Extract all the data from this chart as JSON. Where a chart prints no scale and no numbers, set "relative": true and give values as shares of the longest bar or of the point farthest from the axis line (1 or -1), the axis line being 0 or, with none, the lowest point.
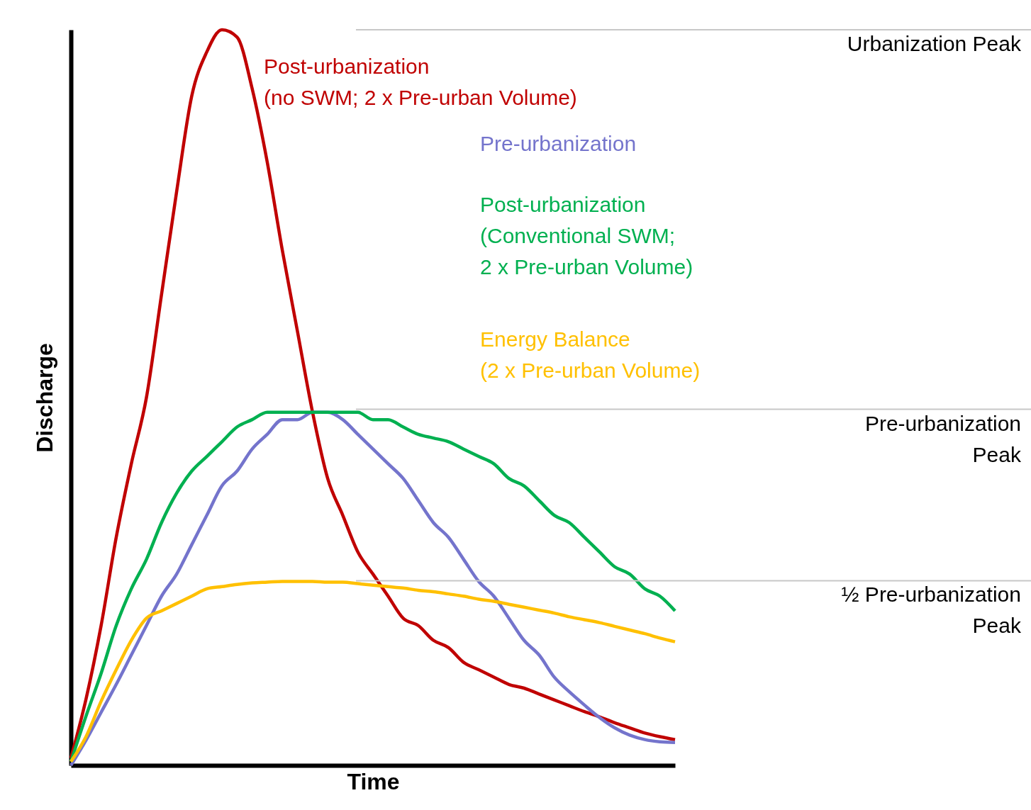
{
  "chart_data": {
    "type": "line",
    "relative": true,
    "xlabel": "Time",
    "ylabel": "Discharge",
    "grid": false,
    "categories": [
      null,
      null,
      null,
      null,
      null,
      null,
      null,
      null,
      null,
      null,
      null,
      null,
      null,
      null,
      null,
      null,
      null,
      null,
      null,
      null,
      null,
      null,
      null,
      null,
      null,
      null,
      null,
      null,
      null,
      null,
      null,
      null,
      null,
      null,
      null,
      null,
      null,
      null,
      null,
      null,
      null
    ],
    "series": [
      {
        "name": "Post-urbanization\n(no SWM; 2 x Pre-urban Volume)",
        "color": "#c00000",
        "values": [
          0.01,
          0.09,
          0.19,
          0.31,
          0.41,
          0.5,
          0.64,
          0.78,
          0.91,
          0.97,
          1.0,
          0.99,
          0.92,
          0.82,
          0.7,
          0.59,
          0.48,
          0.39,
          0.34,
          0.29,
          0.26,
          0.23,
          0.2,
          0.19,
          0.17,
          0.16,
          0.14,
          0.13,
          0.12,
          0.11,
          0.105,
          0.097,
          0.089,
          0.081,
          0.073,
          0.066,
          0.058,
          0.051,
          0.044,
          0.039,
          0.035
        ]
      },
      {
        "name": "Pre-urbanization",
        "color": "#7474cc",
        "values": [
          0,
          0.034,
          0.072,
          0.11,
          0.15,
          0.19,
          0.23,
          0.26,
          0.3,
          0.34,
          0.38,
          0.4,
          0.43,
          0.45,
          0.47,
          0.47,
          0.48,
          0.48,
          0.47,
          0.45,
          0.43,
          0.41,
          0.39,
          0.36,
          0.33,
          0.31,
          0.28,
          0.25,
          0.23,
          0.2,
          0.17,
          0.15,
          0.12,
          0.1,
          0.082,
          0.065,
          0.051,
          0.041,
          0.035,
          0.032,
          0.031
        ]
      },
      {
        "name": "Post-urbanization\n(Conventional SWM;\n2 x Pre-urban Volume)",
        "color": "#00b050",
        "values": [
          0.005,
          0.067,
          0.125,
          0.19,
          0.24,
          0.28,
          0.33,
          0.37,
          0.4,
          0.42,
          0.44,
          0.46,
          0.47,
          0.48,
          0.48,
          0.48,
          0.48,
          0.48,
          0.48,
          0.48,
          0.47,
          0.47,
          0.46,
          0.45,
          0.445,
          0.44,
          0.43,
          0.42,
          0.41,
          0.39,
          0.38,
          0.36,
          0.34,
          0.33,
          0.31,
          0.29,
          0.27,
          0.26,
          0.24,
          0.23,
          0.21
        ]
      },
      {
        "name": "Energy Balance\n(2 x Pre-urban Volume)",
        "color": "#ffc000",
        "values": [
          0.005,
          0.039,
          0.087,
          0.13,
          0.17,
          0.2,
          0.21,
          0.22,
          0.23,
          0.24,
          0.243,
          0.246,
          0.248,
          0.249,
          0.25,
          0.25,
          0.25,
          0.249,
          0.249,
          0.247,
          0.245,
          0.243,
          0.241,
          0.238,
          0.236,
          0.233,
          0.23,
          0.226,
          0.223,
          0.219,
          0.215,
          0.211,
          0.207,
          0.202,
          0.198,
          0.194,
          0.189,
          0.184,
          0.179,
          0.173,
          0.168
        ]
      }
    ],
    "ref_lines": [
      {
        "axis": "y",
        "value": 1.0,
        "label": "Urbanization Peak",
        "color": "#c8c8c8"
      },
      {
        "axis": "y",
        "value": 0.484,
        "label": "Pre-urbanization\nPeak",
        "color": "#c8c8c8"
      },
      {
        "axis": "y",
        "value": 0.251,
        "label": "½ Pre-urbanization\nPeak",
        "color": "#c8c8c8"
      }
    ]
  }
}
